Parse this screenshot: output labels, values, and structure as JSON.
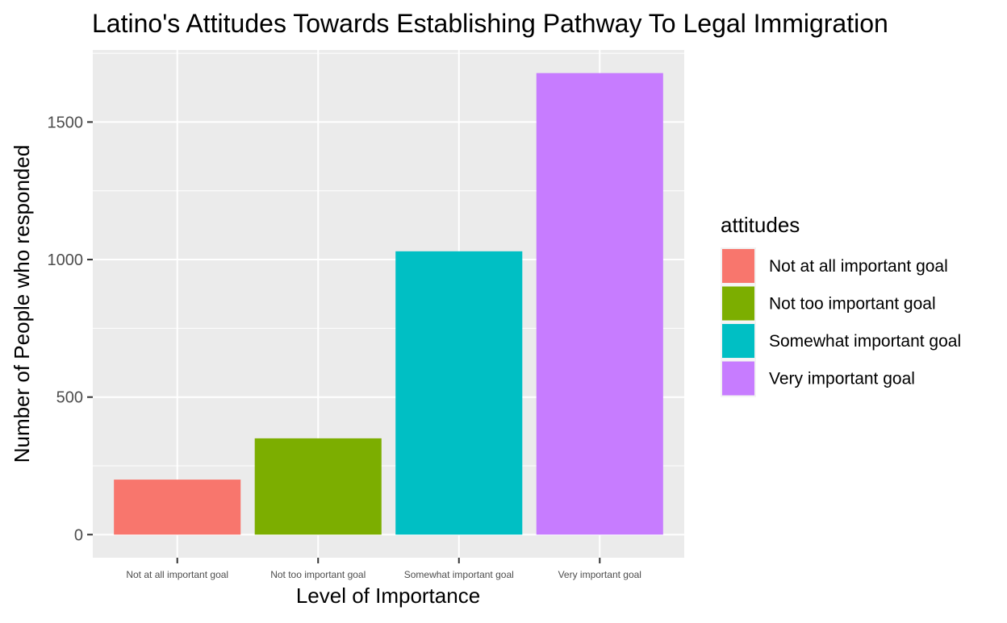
{
  "chart_data": {
    "type": "bar",
    "title": "Latino's Attitudes Towards Establishing Pathway To Legal Immigration",
    "xlabel": "Level of Importance",
    "ylabel": "Number of People who responded",
    "categories": [
      "Not at all important goal",
      "Not too important goal",
      "Somewhat important goal",
      "Very important goal"
    ],
    "values": [
      200,
      350,
      1030,
      1678
    ],
    "colors": [
      "#F8766D",
      "#7CAE00",
      "#00BFC4",
      "#C77CFF"
    ],
    "yticks": [
      0,
      500,
      1000,
      1500
    ],
    "ytick_labels": [
      "0",
      "500",
      "1000",
      "1500"
    ],
    "ylim": [
      -84,
      1762
    ],
    "grid": true,
    "legend": {
      "title": "attitudes",
      "placement": "right",
      "entries": [
        "Not at all important goal",
        "Not too important goal",
        "Somewhat important goal",
        "Very important goal"
      ]
    }
  }
}
